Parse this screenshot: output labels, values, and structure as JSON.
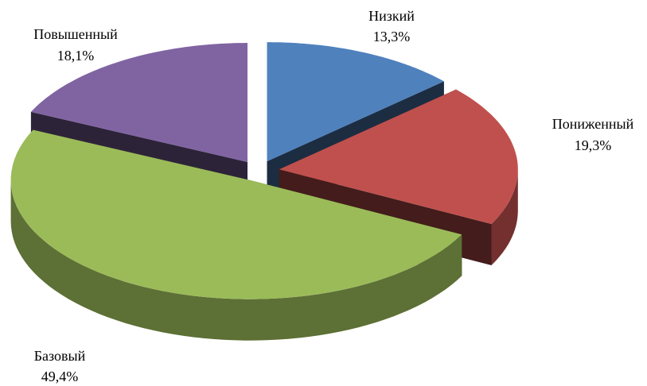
{
  "chart_data": {
    "type": "pie",
    "categories": [
      "Низкий",
      "Пониженный",
      "Базовый",
      "Повышенный"
    ],
    "values": [
      13.3,
      19.3,
      49.4,
      18.1
    ],
    "value_labels": [
      "13,3%",
      "19,3%",
      "49,4%",
      "18,1%"
    ],
    "colors": [
      "#4f81bd",
      "#c0504d",
      "#9bbb59",
      "#8064a2"
    ]
  }
}
